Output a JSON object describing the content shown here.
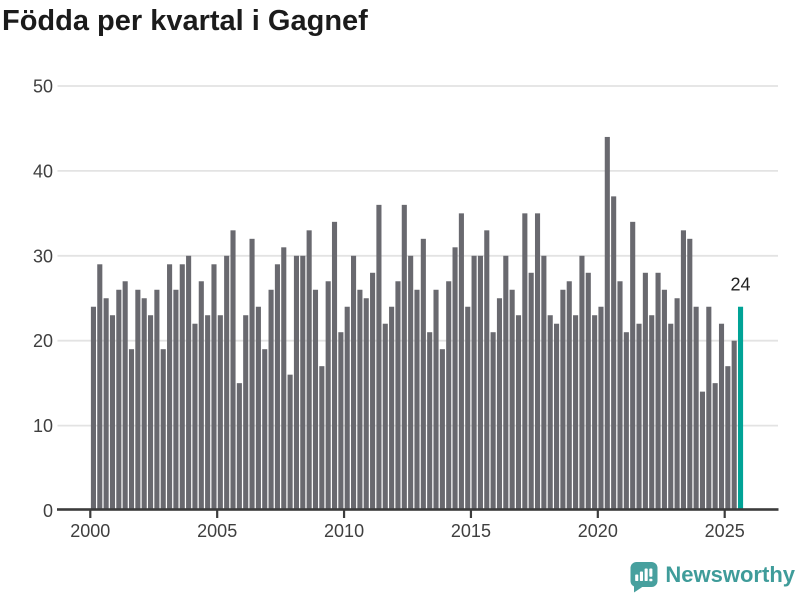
{
  "title": "Födda per kvartal i Gagnef",
  "footer": {
    "brand": "Newsworthy"
  },
  "colors": {
    "bar": "#69696f",
    "highlight": "#00a396",
    "grid": "#e3e3e3",
    "axis": "#3c3c3c",
    "tick_text": "#3f3f3f",
    "title_text": "#1b1b1b",
    "annotation_text": "#222222",
    "logo": "#47a09e"
  },
  "chart_data": {
    "type": "bar",
    "title": "Födda per kvartal i Gagnef",
    "xlabel": "",
    "ylabel": "",
    "ylim": [
      0,
      50
    ],
    "grid": "horizontal",
    "start_year": 2000,
    "start_quarter": 1,
    "frequency": "quarterly",
    "values": [
      24,
      29,
      25,
      23,
      26,
      27,
      19,
      26,
      25,
      23,
      26,
      19,
      29,
      26,
      29,
      30,
      22,
      27,
      23,
      29,
      23,
      30,
      33,
      15,
      23,
      32,
      24,
      19,
      26,
      29,
      31,
      16,
      30,
      30,
      33,
      26,
      17,
      27,
      34,
      21,
      24,
      30,
      26,
      25,
      28,
      36,
      22,
      24,
      27,
      36,
      30,
      26,
      32,
      21,
      26,
      19,
      27,
      31,
      35,
      24,
      30,
      30,
      33,
      21,
      25,
      30,
      26,
      23,
      35,
      28,
      35,
      30,
      23,
      22,
      26,
      27,
      23,
      30,
      28,
      23,
      24,
      44,
      37,
      27,
      21,
      34,
      22,
      28,
      23,
      28,
      26,
      22,
      25,
      33,
      32,
      24,
      14,
      24,
      15,
      22,
      17,
      20,
      24
    ],
    "highlight_last": true,
    "last_value_label": "24",
    "y_ticks": [
      0,
      10,
      20,
      30,
      40,
      50
    ],
    "x_tick_labels": [
      "2000",
      "2005",
      "2010",
      "2015",
      "2020",
      "2025"
    ],
    "legend": "none"
  }
}
